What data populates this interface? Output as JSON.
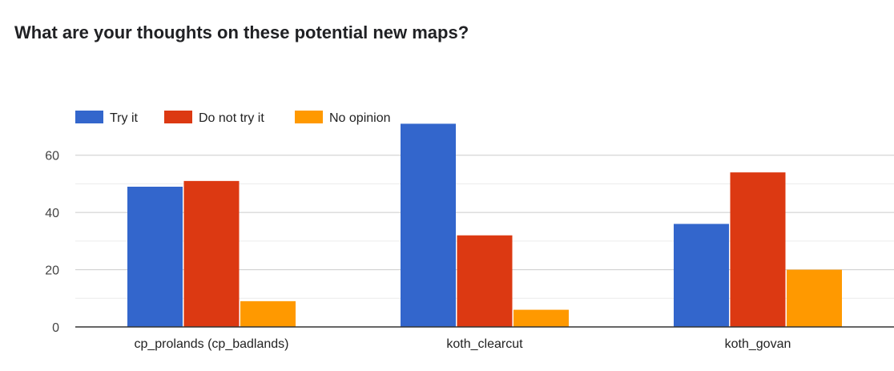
{
  "chart_data": {
    "type": "bar",
    "title": "What are your thoughts on these potential new maps?",
    "xlabel": "",
    "ylabel": "",
    "categories": [
      "cp_prolands (cp_badlands)",
      "koth_clearcut",
      "koth_govan"
    ],
    "series": [
      {
        "name": "Try it",
        "color": "#3366cc",
        "values": [
          49,
          71,
          36
        ]
      },
      {
        "name": "Do not try it",
        "color": "#dc3912",
        "values": [
          51,
          32,
          54
        ]
      },
      {
        "name": "No opinion",
        "color": "#ff9900",
        "values": [
          9,
          6,
          20
        ]
      }
    ],
    "ylim": [
      0,
      70
    ],
    "yticks": [
      0,
      20,
      40,
      60
    ],
    "grid": true,
    "legend_position": "top-left"
  }
}
